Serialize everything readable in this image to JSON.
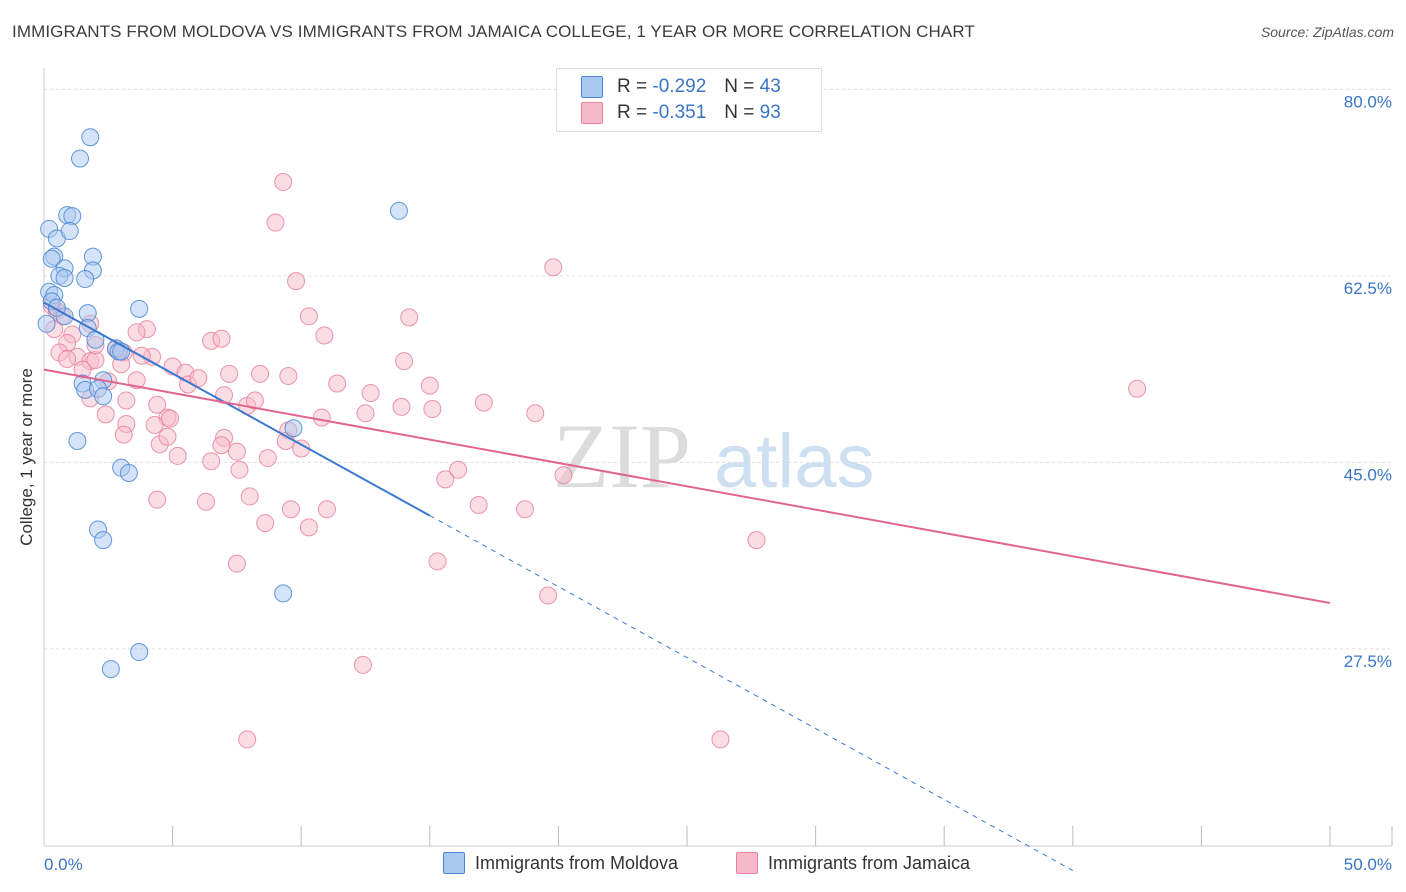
{
  "header": {
    "title": "IMMIGRANTS FROM MOLDOVA VS IMMIGRANTS FROM JAMAICA COLLEGE, 1 YEAR OR MORE CORRELATION CHART",
    "source": "Source: ZipAtlas.com"
  },
  "watermark": {
    "zip": "ZIP",
    "atlas": "atlas"
  },
  "legend_top": {
    "rows": [
      {
        "r_label": "R =",
        "r_value": "-0.292",
        "n_label": "N =",
        "n_value": "43"
      },
      {
        "r_label": "R =",
        "r_value": "-0.351",
        "n_label": "N =",
        "n_value": "93"
      }
    ]
  },
  "legend_bottom": {
    "items": [
      "Immigrants from Moldova",
      "Immigrants from Jamaica"
    ]
  },
  "colors": {
    "moldova_fill": "#a9c8f0",
    "moldova_stroke": "#4a86d4",
    "moldova_line": "#3b78d0",
    "jamaica_fill": "#f6b9ca",
    "jamaica_stroke": "#e8829e",
    "jamaica_line": "#e06690",
    "tick_label": "#3a75c4",
    "grid": "#dddddd"
  },
  "chart_data": {
    "type": "scatter",
    "xlabel": "",
    "ylabel": "College, 1 year or more",
    "xlim": [
      0,
      50
    ],
    "ylim": [
      9,
      82
    ],
    "x_tick_labels": [
      {
        "value": 0,
        "label": "0.0%"
      },
      {
        "value": 50,
        "label": "50.0%"
      }
    ],
    "y_tick_labels": [
      {
        "value": 80,
        "label": "80.0%"
      },
      {
        "value": 62.5,
        "label": "62.5%"
      },
      {
        "value": 45,
        "label": "45.0%"
      },
      {
        "value": 27.5,
        "label": "27.5%"
      }
    ],
    "x_minor_ticks": [
      5,
      10,
      15,
      20,
      25,
      30,
      35,
      40,
      45,
      50
    ],
    "grid": true,
    "series": [
      {
        "name": "Immigrants from Moldova",
        "color": "#a9c8f0",
        "points": [
          [
            1.8,
            75.5
          ],
          [
            1.4,
            73.5
          ],
          [
            13.8,
            68.6
          ],
          [
            0.9,
            68.2
          ],
          [
            1.1,
            68.1
          ],
          [
            0.2,
            66.9
          ],
          [
            0.5,
            66.0
          ],
          [
            1.0,
            66.7
          ],
          [
            0.4,
            64.3
          ],
          [
            0.3,
            64.1
          ],
          [
            1.9,
            64.3
          ],
          [
            0.8,
            63.2
          ],
          [
            1.9,
            63.0
          ],
          [
            0.6,
            62.5
          ],
          [
            1.6,
            62.2
          ],
          [
            0.8,
            62.3
          ],
          [
            0.2,
            61.0
          ],
          [
            0.4,
            60.7
          ],
          [
            0.3,
            60.1
          ],
          [
            3.7,
            59.4
          ],
          [
            1.7,
            59.0
          ],
          [
            0.8,
            58.7
          ],
          [
            1.7,
            57.6
          ],
          [
            2.0,
            56.5
          ],
          [
            2.8,
            55.7
          ],
          [
            2.9,
            55.4
          ],
          [
            3.0,
            55.4
          ],
          [
            2.3,
            52.7
          ],
          [
            1.5,
            52.4
          ],
          [
            1.6,
            51.8
          ],
          [
            2.1,
            51.9
          ],
          [
            2.3,
            51.2
          ],
          [
            9.7,
            48.2
          ],
          [
            1.3,
            47.0
          ],
          [
            3.0,
            44.5
          ],
          [
            3.3,
            44.0
          ],
          [
            2.1,
            38.7
          ],
          [
            2.3,
            37.7
          ],
          [
            9.3,
            32.7
          ],
          [
            3.7,
            27.2
          ],
          [
            2.6,
            25.6
          ],
          [
            0.1,
            58.0
          ],
          [
            0.5,
            59.5
          ]
        ]
      },
      {
        "name": "Immigrants from Jamaica",
        "color": "#f6b9ca",
        "points": [
          [
            9.3,
            71.3
          ],
          [
            9.0,
            67.5
          ],
          [
            19.8,
            63.3
          ],
          [
            9.8,
            62.0
          ],
          [
            0.3,
            59.7
          ],
          [
            0.5,
            59.2
          ],
          [
            0.7,
            58.7
          ],
          [
            10.3,
            58.7
          ],
          [
            14.2,
            58.6
          ],
          [
            1.8,
            58.0
          ],
          [
            4.0,
            57.5
          ],
          [
            3.6,
            57.2
          ],
          [
            0.4,
            57.5
          ],
          [
            1.1,
            57.0
          ],
          [
            10.9,
            56.9
          ],
          [
            6.5,
            56.4
          ],
          [
            6.9,
            56.6
          ],
          [
            0.9,
            56.2
          ],
          [
            2.8,
            55.6
          ],
          [
            0.6,
            55.3
          ],
          [
            1.3,
            54.9
          ],
          [
            3.1,
            55.3
          ],
          [
            4.2,
            54.9
          ],
          [
            1.8,
            54.5
          ],
          [
            0.9,
            54.7
          ],
          [
            2.0,
            54.6
          ],
          [
            3.0,
            54.2
          ],
          [
            14.0,
            54.5
          ],
          [
            5.0,
            54.0
          ],
          [
            5.5,
            53.4
          ],
          [
            7.2,
            53.3
          ],
          [
            8.4,
            53.3
          ],
          [
            9.5,
            53.1
          ],
          [
            2.5,
            52.6
          ],
          [
            3.6,
            52.7
          ],
          [
            5.6,
            52.3
          ],
          [
            15.0,
            52.2
          ],
          [
            12.7,
            51.5
          ],
          [
            7.0,
            51.3
          ],
          [
            1.8,
            51.0
          ],
          [
            3.2,
            50.8
          ],
          [
            4.4,
            50.4
          ],
          [
            7.9,
            50.3
          ],
          [
            17.1,
            50.6
          ],
          [
            13.9,
            50.2
          ],
          [
            15.1,
            50.0
          ],
          [
            12.5,
            49.6
          ],
          [
            19.1,
            49.6
          ],
          [
            2.4,
            49.5
          ],
          [
            4.8,
            49.2
          ],
          [
            4.9,
            49.1
          ],
          [
            3.2,
            48.6
          ],
          [
            10.8,
            49.2
          ],
          [
            4.3,
            48.5
          ],
          [
            9.5,
            48.0
          ],
          [
            3.1,
            47.6
          ],
          [
            7.0,
            47.3
          ],
          [
            9.4,
            47.0
          ],
          [
            6.9,
            46.6
          ],
          [
            4.5,
            46.7
          ],
          [
            7.5,
            46.0
          ],
          [
            5.2,
            45.6
          ],
          [
            8.7,
            45.4
          ],
          [
            6.5,
            45.1
          ],
          [
            7.6,
            44.3
          ],
          [
            16.1,
            44.3
          ],
          [
            15.6,
            43.4
          ],
          [
            20.2,
            43.8
          ],
          [
            8.0,
            41.8
          ],
          [
            4.4,
            41.5
          ],
          [
            6.3,
            41.3
          ],
          [
            16.9,
            41.0
          ],
          [
            9.6,
            40.6
          ],
          [
            11.0,
            40.6
          ],
          [
            18.7,
            40.6
          ],
          [
            8.6,
            39.3
          ],
          [
            10.3,
            38.9
          ],
          [
            27.7,
            37.7
          ],
          [
            15.3,
            35.7
          ],
          [
            7.5,
            35.5
          ],
          [
            19.6,
            32.5
          ],
          [
            12.4,
            26.0
          ],
          [
            7.9,
            19.0
          ],
          [
            26.3,
            19.0
          ],
          [
            42.5,
            51.9
          ],
          [
            2.0,
            56.0
          ],
          [
            3.8,
            55.0
          ],
          [
            11.4,
            52.4
          ],
          [
            1.5,
            53.7
          ],
          [
            6.0,
            52.9
          ],
          [
            8.2,
            50.8
          ],
          [
            4.8,
            47.4
          ],
          [
            10.0,
            46.3
          ]
        ]
      }
    ],
    "trend_lines": [
      {
        "series": "Immigrants from Moldova",
        "solid": [
          [
            0,
            60.0
          ],
          [
            15,
            40.0
          ]
        ],
        "dashed": [
          [
            15,
            40.0
          ],
          [
            40,
            6.7
          ]
        ]
      },
      {
        "series": "Immigrants from Jamaica",
        "solid": [
          [
            0,
            53.7
          ],
          [
            50,
            31.8
          ]
        ]
      }
    ]
  }
}
